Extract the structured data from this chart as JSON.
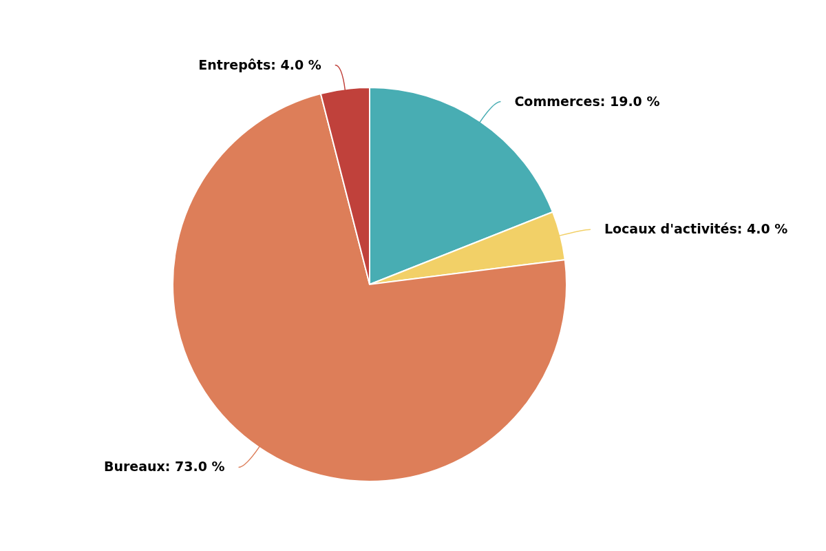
{
  "chart_data": {
    "type": "pie",
    "categories": [
      "Commerces",
      "Locaux d'activités",
      "Bureaux",
      "Entrepôts"
    ],
    "values": [
      19,
      4,
      73,
      4
    ],
    "value_labels": [
      "19.0 %",
      "4.0 %",
      "73.0 %",
      "4.0 %"
    ],
    "colors": [
      "#48adb3",
      "#f2d067",
      "#dd7e59",
      "#c0413b"
    ],
    "legend": false
  }
}
